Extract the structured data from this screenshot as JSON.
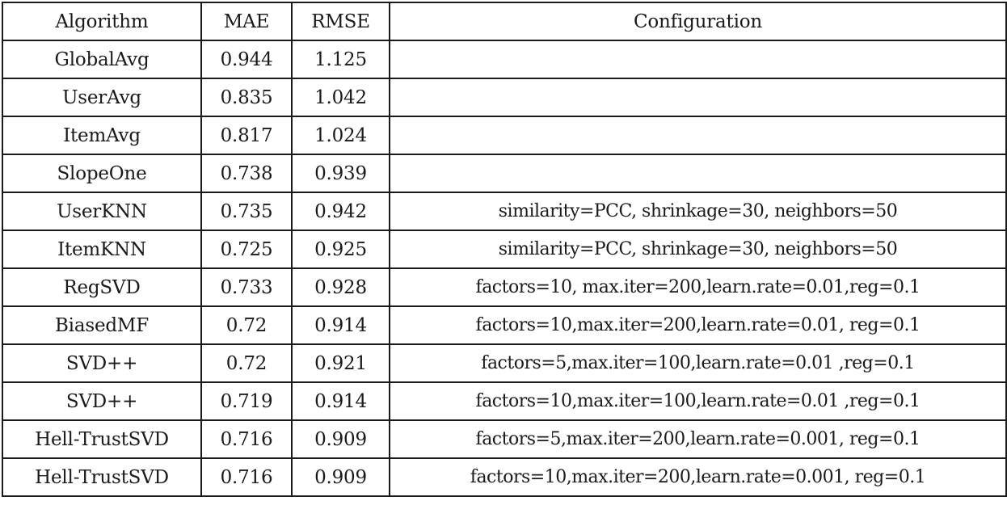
{
  "table": {
    "headers": [
      "Algorithm",
      "MAE",
      "RMSE",
      "Configuration"
    ],
    "rows": [
      {
        "algorithm": "GlobalAvg",
        "mae": "0.944",
        "rmse": "1.125",
        "config": ""
      },
      {
        "algorithm": "UserAvg",
        "mae": "0.835",
        "rmse": "1.042",
        "config": ""
      },
      {
        "algorithm": "ItemAvg",
        "mae": "0.817",
        "rmse": "1.024",
        "config": ""
      },
      {
        "algorithm": "SlopeOne",
        "mae": "0.738",
        "rmse": "0.939",
        "config": ""
      },
      {
        "algorithm": "UserKNN",
        "mae": "0.735",
        "rmse": "0.942",
        "config": "similarity=PCC, shrinkage=30, neighbors=50"
      },
      {
        "algorithm": "ItemKNN",
        "mae": "0.725",
        "rmse": "0.925",
        "config": "similarity=PCC, shrinkage=30, neighbors=50"
      },
      {
        "algorithm": "RegSVD",
        "mae": "0.733",
        "rmse": "0.928",
        "config": "factors=10, max.iter=200,learn.rate=0.01,reg=0.1"
      },
      {
        "algorithm": "BiasedMF",
        "mae": "0.72",
        "rmse": "0.914",
        "config": "factors=10,max.iter=200,learn.rate=0.01, reg=0.1"
      },
      {
        "algorithm": "SVD++",
        "mae": "0.72",
        "rmse": "0.921",
        "config": "factors=5,max.iter=100,learn.rate=0.01 ,reg=0.1"
      },
      {
        "algorithm": "SVD++",
        "mae": "0.719",
        "rmse": "0.914",
        "config": "factors=10,max.iter=100,learn.rate=0.01 ,reg=0.1"
      },
      {
        "algorithm": "Hell-TrustSVD",
        "mae": "0.716",
        "rmse": "0.909",
        "config": "factors=5,max.iter=200,learn.rate=0.001, reg=0.1"
      },
      {
        "algorithm": "Hell-TrustSVD",
        "mae": "0.716",
        "rmse": "0.909",
        "config": "factors=10,max.iter=200,learn.rate=0.001, reg=0.1"
      }
    ]
  }
}
